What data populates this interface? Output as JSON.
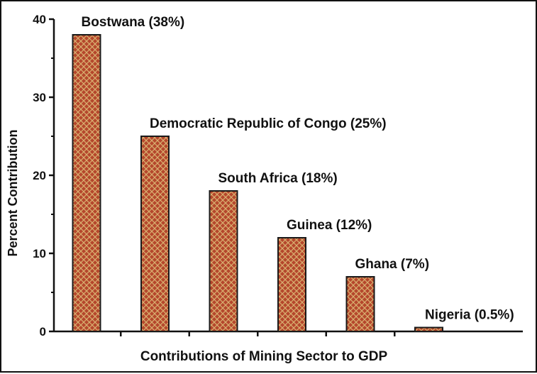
{
  "chart_data": {
    "type": "bar",
    "categories": [
      "Bostwana (38%)",
      "Democratic Republic of Congo (25%)",
      "South Africa (18%)",
      "Guinea (12%)",
      "Ghana (7%)",
      "Nigeria (0.5%)"
    ],
    "values": [
      38,
      25,
      18,
      12,
      7,
      0.5
    ],
    "title": "",
    "xlabel": "Contributions of Mining Sector to GDP",
    "ylabel": "Percent Contribution",
    "ylim": [
      0,
      40
    ],
    "yticks": [
      "0",
      "10",
      "20",
      "30",
      "40"
    ],
    "grid": false,
    "legend": "none",
    "colors": {
      "bar_fill": "#b5472c",
      "bar_hatch": "#d9b070",
      "bar_border": "#1a1a1a",
      "axis": "#111111",
      "text": "#111111"
    }
  }
}
